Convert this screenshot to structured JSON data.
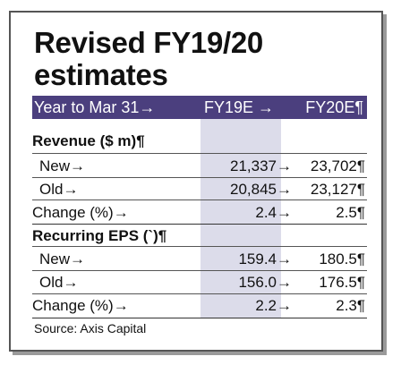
{
  "title_line1": "Revised FY19/20",
  "title_line2": "estimates",
  "header": {
    "label": "Year to Mar 31→",
    "col1": "FY19E →",
    "col2": "FY20E¶"
  },
  "section1_title": "Revenue (​$ m)¶",
  "rows": [
    {
      "label": "New→",
      "v1": "21,337→",
      "v2": "23,702¶"
    },
    {
      "label": "Old→",
      "v1": "20,845→",
      "v2": "23,127¶"
    },
    {
      "label": "Change (%)→",
      "v1": "2.4→",
      "v2": "2.5¶"
    }
  ],
  "section2_title": "Recurring EPS (`)¶",
  "rows2": [
    {
      "label": "New→",
      "v1": "159.4→",
      "v2": "180.5¶"
    },
    {
      "label": "Old→",
      "v1": "156.0→",
      "v2": "176.5¶"
    },
    {
      "label": "Change (%)→",
      "v1": "2.2→",
      "v2": "2.3¶"
    }
  ],
  "source": "Source: Axis Capital"
}
